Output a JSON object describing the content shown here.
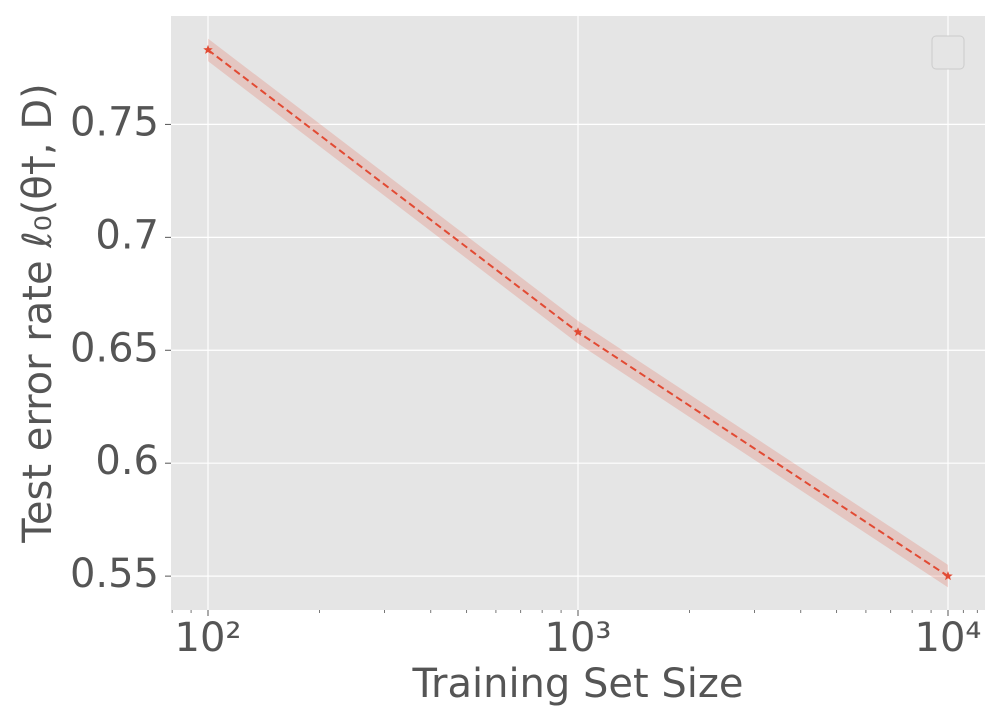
{
  "chart_data": {
    "type": "line",
    "x_label": "Training Set Size",
    "y_label": "Test error rate ℓ₀(θ†, D)",
    "x": [
      100,
      1000,
      10000
    ],
    "series": [
      {
        "color": "#e24a33",
        "values": [
          0.783,
          0.658,
          0.55
        ],
        "lower": [
          0.778,
          0.653,
          0.545
        ],
        "upper": [
          0.788,
          0.663,
          0.555
        ]
      }
    ],
    "xlim": [
      79.43,
      12589
    ],
    "xlog": true,
    "xticks": [
      {
        "value": 100,
        "label": "10²"
      },
      {
        "value": 1000,
        "label": "10³"
      },
      {
        "value": 10000,
        "label": "10⁴"
      }
    ],
    "xminorticks": [
      80,
      90,
      200,
      300,
      400,
      500,
      600,
      700,
      800,
      900,
      2000,
      3000,
      4000,
      5000,
      6000,
      7000,
      8000,
      9000,
      11000,
      12000
    ],
    "ylim": [
      0.535,
      0.798
    ],
    "yticks": [
      0.55,
      0.6,
      0.65,
      0.7,
      0.75
    ],
    "grid": true,
    "legend": "upper right"
  }
}
